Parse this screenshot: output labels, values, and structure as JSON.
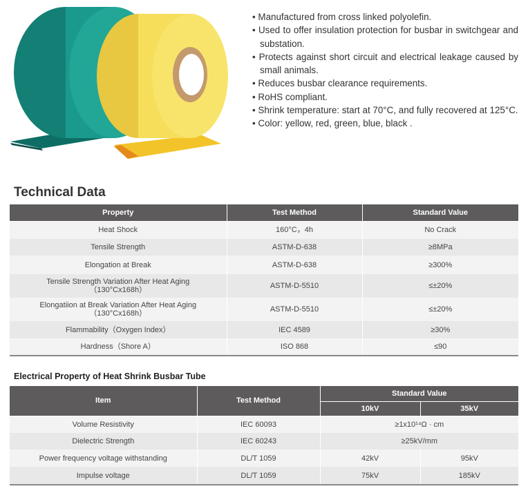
{
  "features": [
    "Manufactured from cross linked polyolefin.",
    "Used to offer insulation protection for busbar in switchgear and substation.",
    "Protects against short circuit and electrical leakage caused by small animals.",
    "Reduces busbar clearance requirements.",
    "RoHS compliant.",
    "Shrink temperature: start at 70°C, and fully recovered at 125°C.",
    "Color: yellow, red, green, blue, black ."
  ],
  "colors": {
    "header_bg": "#5d5b5b",
    "green_roll": "#1a9a8c",
    "yellow_roll": "#f6de5a"
  },
  "technical": {
    "title": "Technical Data",
    "headers": [
      "Property",
      "Test Method",
      "Standard Value"
    ],
    "rows": [
      [
        "Heat Shock",
        "160°C，4h",
        "No Crack"
      ],
      [
        "Tensile Strength",
        "ASTM-D-638",
        "≥8MPa"
      ],
      [
        "Elongation at Break",
        "ASTM-D-638",
        "≥300%"
      ],
      [
        "Tensile Strength Variation After Heat Aging\n（130°Cx168h）",
        "ASTM-D-5510",
        "≤±20%"
      ],
      [
        "Elongatiion at Break Variation After Heat Aging\n（130°Cx168h）",
        "ASTM-D-5510",
        "≤±20%"
      ],
      [
        "Flammability（Oxygen Index）",
        "IEC 4589",
        "≥30%"
      ],
      [
        "Hardness（Shore A）",
        "ISO 868",
        "≤90"
      ]
    ]
  },
  "electrical": {
    "title": "Electrical Property of Heat Shrink Busbar Tube",
    "headers": {
      "item": "Item",
      "method": "Test Method",
      "standard": "Standard Value",
      "v10": "10kV",
      "v35": "35kV"
    },
    "rows": [
      {
        "item": "Volume Resistivity",
        "method": "IEC 60093",
        "value": "≥1x10¹⁴Ω · cm"
      },
      {
        "item": "Dielectric Strength",
        "method": "IEC 60243",
        "value": "≥25kV/mm"
      },
      {
        "item": "Power frequency voltage withstanding",
        "method": "DL/T 1059",
        "v10": "42kV",
        "v35": "95kV"
      },
      {
        "item": "Impulse voltage",
        "method": "DL/T 1059",
        "v10": "75kV",
        "v35": "185kV"
      }
    ]
  }
}
